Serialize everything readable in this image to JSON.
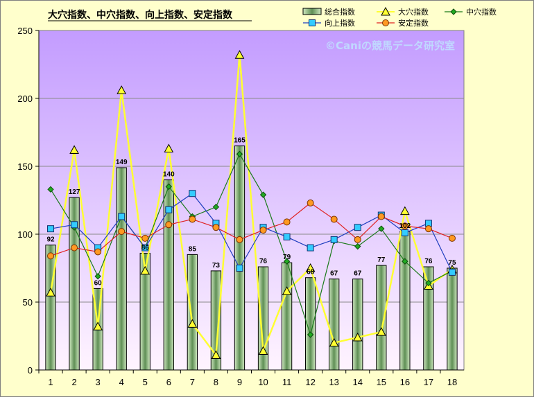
{
  "title": "大穴指数、中穴指数、向上指数、安定指数",
  "watermark": "©Caniの競馬データ研究室",
  "colors": {
    "frame_bg": "#ffffcc",
    "plot_top": "#c39cff",
    "plot_bottom": "#fff4ff",
    "bar_fill_edge": "#cfe8c0",
    "bar_fill_center": "#5f8f55",
    "large": "#ffff33",
    "medium": "#1a7a1a",
    "medium_marker": "#22aa22",
    "rise": "#1f3fbf",
    "rise_marker": "#33ccff",
    "stable": "#e02020",
    "stable_marker": "#ff9922"
  },
  "chart_data": {
    "type": "bar",
    "title": "大穴指数、中穴指数、向上指数、安定指数",
    "categories": [
      "1",
      "2",
      "3",
      "4",
      "5",
      "6",
      "7",
      "8",
      "9",
      "10",
      "11",
      "12",
      "13",
      "14",
      "15",
      "16",
      "17",
      "18"
    ],
    "ylim": [
      0,
      250
    ],
    "yticks": [
      0,
      50,
      100,
      150,
      200,
      250
    ],
    "grid": true,
    "legend_position": "top-right",
    "series": [
      {
        "name": "総合指数",
        "kind": "bar",
        "values": [
          92,
          127,
          60,
          149,
          86,
          140,
          85,
          73,
          165,
          76,
          79,
          68,
          67,
          67,
          77,
          102,
          76,
          75
        ]
      },
      {
        "name": "大穴指数",
        "kind": "line",
        "values": [
          57,
          162,
          32,
          206,
          73,
          163,
          34,
          11,
          232,
          14,
          58,
          75,
          20,
          24,
          28,
          117,
          62,
          74
        ]
      },
      {
        "name": "中穴指数",
        "kind": "line",
        "values": [
          133,
          105,
          69,
          113,
          90,
          135,
          113,
          120,
          159,
          129,
          80,
          26,
          95,
          91,
          104,
          80,
          64,
          73
        ]
      },
      {
        "name": "向上指数",
        "kind": "line",
        "values": [
          104,
          107,
          90,
          113,
          90,
          118,
          130,
          108,
          75,
          105,
          98,
          90,
          96,
          105,
          114,
          101,
          108,
          72
        ]
      },
      {
        "name": "安定指数",
        "kind": "line",
        "values": [
          84,
          90,
          87,
          102,
          97,
          107,
          111,
          105,
          96,
          103,
          109,
          123,
          111,
          96,
          113,
          106,
          104,
          97
        ]
      }
    ]
  }
}
